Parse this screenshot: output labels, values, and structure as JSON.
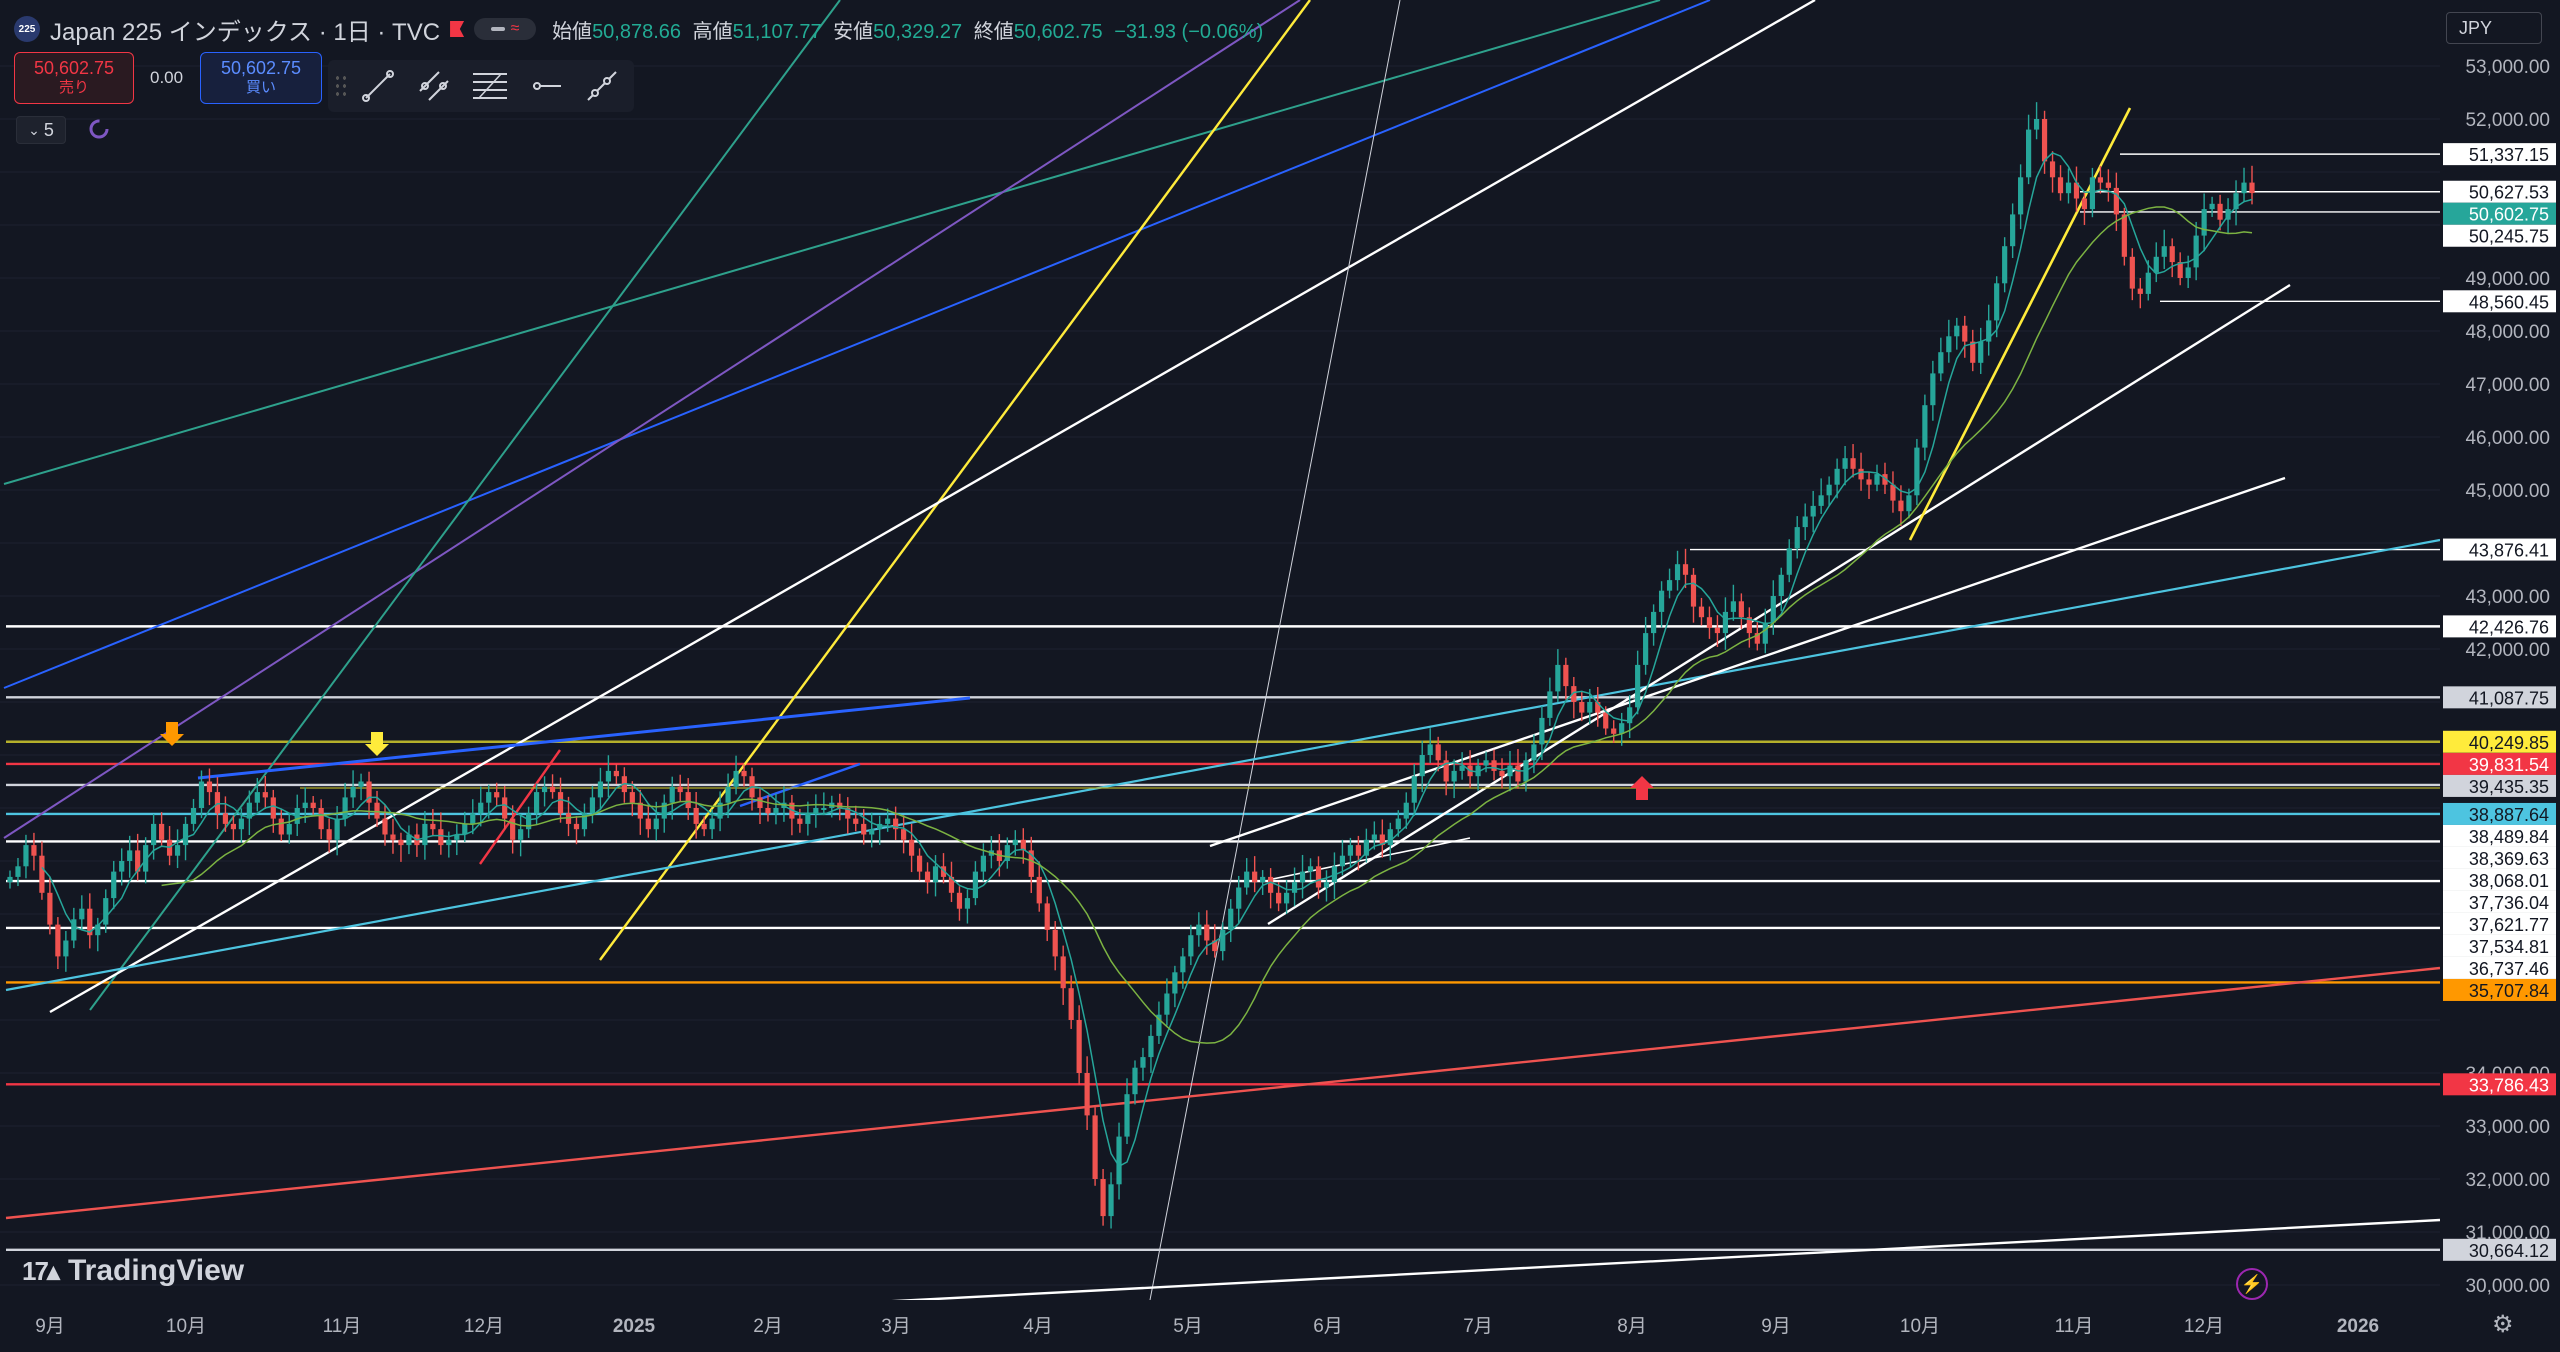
{
  "header": {
    "symbol": "Japan 225 インデックス · 1日 · TVC",
    "open_label": "始値",
    "open": "50,878.66",
    "high_label": "高値",
    "high": "51,107.77",
    "low_label": "安値",
    "low": "50,329.27",
    "close_label": "終値",
    "close": "50,602.75",
    "change": "−31.93 (−0.06%)",
    "logo_text": "225"
  },
  "trade": {
    "sell_price": "50,602.75",
    "sell_label": "売り",
    "spread": "0.00",
    "buy_price": "50,602.75",
    "buy_label": "買い"
  },
  "indicators": {
    "count": "5"
  },
  "currency": "JPY",
  "brand": {
    "name": "TradingView"
  },
  "colors": {
    "bg": "#131722",
    "up": "#26a69a",
    "down": "#ef5350",
    "white": "#ffffff",
    "yellow": "#ffeb3b",
    "orange": "#ff9800",
    "red": "#f23645",
    "cyan": "#4dc4e0",
    "blue": "#2962ff",
    "purple": "#7e57c2",
    "teal": "#2ea18c",
    "green": "#3d8f6a",
    "grey": "#9598a1"
  },
  "chart_data": {
    "type": "candlestick",
    "title": "Japan 225 インデックス · 1日 · TVC",
    "y_axis": {
      "ticks": [
        "53,000.00",
        "52,000.00",
        "49,000.00",
        "48,000.00",
        "47,000.00",
        "46,000.00",
        "45,000.00",
        "43,000.00",
        "42,000.00",
        "34,000.00",
        "33,000.00",
        "32,000.00",
        "31,000.00",
        "30,000.00"
      ],
      "ylim": [
        29800,
        53400
      ]
    },
    "x_axis": {
      "ticks": [
        "9月",
        "10月",
        "11月",
        "12月",
        "2025",
        "2月",
        "3月",
        "4月",
        "5月",
        "6月",
        "7月",
        "8月",
        "9月",
        "10月",
        "11月",
        "12月",
        "2026"
      ]
    },
    "price_labels": [
      {
        "text": "51,337.15",
        "value": 51337.15,
        "bg": "#ffffff",
        "fg": "#131722"
      },
      {
        "text": "50,627.53",
        "value": 50627.53,
        "bg": "#ffffff",
        "fg": "#131722"
      },
      {
        "text": "50,602.75",
        "value": 50602.75,
        "bg": "#26a69a",
        "fg": "#ffffff"
      },
      {
        "text": "50,245.75",
        "value": 50245.75,
        "bg": "#ffffff",
        "fg": "#131722"
      },
      {
        "text": "48,560.45",
        "value": 48560.45,
        "bg": "#ffffff",
        "fg": "#131722"
      },
      {
        "text": "43,876.41",
        "value": 43876.41,
        "bg": "#ffffff",
        "fg": "#131722"
      },
      {
        "text": "42,426.76",
        "value": 42426.76,
        "bg": "#ffffff",
        "fg": "#131722"
      },
      {
        "text": "41,087.75",
        "value": 41087.75,
        "bg": "#d1d4dc",
        "fg": "#131722"
      },
      {
        "text": "40,249.85",
        "value": 40249.85,
        "bg": "#ffeb3b",
        "fg": "#131722"
      },
      {
        "text": "39,831.54",
        "value": 39831.54,
        "bg": "#f23645",
        "fg": "#ffffff"
      },
      {
        "text": "39,435.35",
        "value": 39435.35,
        "bg": "#d1d4dc",
        "fg": "#131722"
      },
      {
        "text": "38,887.64",
        "value": 38887.64,
        "bg": "#4dc4e0",
        "fg": "#131722"
      },
      {
        "text": "38,489.84",
        "value": 38489.84,
        "bg": "#ffffff",
        "fg": "#131722"
      },
      {
        "text": "38,369.63",
        "value": 38369.63,
        "bg": "#ffffff",
        "fg": "#131722"
      },
      {
        "text": "38,068.01",
        "value": 38068.01,
        "bg": "#ffffff",
        "fg": "#131722"
      },
      {
        "text": "37,736.04",
        "value": 37736.04,
        "bg": "#ffffff",
        "fg": "#131722"
      },
      {
        "text": "37,621.77",
        "value": 37621.77,
        "bg": "#ffffff",
        "fg": "#131722"
      },
      {
        "text": "37,534.81",
        "value": 37534.81,
        "bg": "#ffffff",
        "fg": "#131722"
      },
      {
        "text": "36,737.46",
        "value": 36737.46,
        "bg": "#ffffff",
        "fg": "#131722"
      },
      {
        "text": "35,707.84",
        "value": 35707.84,
        "bg": "#ff9800",
        "fg": "#131722"
      },
      {
        "text": "33,786.43",
        "value": 33786.43,
        "bg": "#f23645",
        "fg": "#ffffff"
      },
      {
        "text": "30,664.12",
        "value": 30664.12,
        "bg": "#d1d4dc",
        "fg": "#131722"
      }
    ],
    "horizontal_levels": [
      {
        "value": 42426.76,
        "color": "#ffffff"
      },
      {
        "value": 41087.75,
        "color": "#d1d4dc"
      },
      {
        "value": 40249.85,
        "color": "#b5b02b"
      },
      {
        "value": 39831.54,
        "color": "#f23645"
      },
      {
        "value": 39435.35,
        "color": "#d1d4dc"
      },
      {
        "value": 38887.64,
        "color": "#4dc4e0"
      },
      {
        "value": 38369.63,
        "color": "#ffffff"
      },
      {
        "value": 37621.77,
        "color": "#ffffff"
      },
      {
        "value": 36737.46,
        "color": "#ffffff"
      },
      {
        "value": 35707.84,
        "color": "#ff9800"
      },
      {
        "value": 33786.43,
        "color": "#f23645"
      },
      {
        "value": 30664.12,
        "color": "#d1d4dc"
      }
    ],
    "closes": [
      37700,
      37900,
      38300,
      38100,
      37400,
      36800,
      36200,
      36500,
      36900,
      37100,
      36600,
      36800,
      37300,
      37800,
      38000,
      38200,
      37800,
      38300,
      38700,
      38400,
      38100,
      38300,
      38700,
      39000,
      39500,
      39300,
      38900,
      38700,
      38600,
      38800,
      39100,
      39300,
      39200,
      38800,
      38500,
      38700,
      39000,
      39100,
      39000,
      38600,
      38400,
      38800,
      39200,
      39400,
      39500,
      39100,
      38800,
      38500,
      38400,
      38300,
      38500,
      38300,
      38700,
      38600,
      38300,
      38400,
      38500,
      38700,
      38900,
      39100,
      39300,
      39200,
      38800,
      38400,
      38600,
      38900,
      39300,
      39400,
      39300,
      38900,
      38700,
      38600,
      38900,
      39200,
      39500,
      39700,
      39600,
      39300,
      39100,
      38800,
      38600,
      38800,
      39100,
      39400,
      39300,
      39000,
      38700,
      38600,
      38800,
      39100,
      39400,
      39700,
      39600,
      39200,
      39000,
      38900,
      39000,
      39100,
      38800,
      38700,
      38900,
      39000,
      39000,
      39100,
      39000,
      38800,
      38700,
      38500,
      38600,
      38700,
      38800,
      38600,
      38400,
      38100,
      37800,
      37600,
      37900,
      37700,
      37400,
      37100,
      37300,
      37800,
      38100,
      38200,
      38000,
      38300,
      38400,
      38200,
      37700,
      37200,
      36700,
      36200,
      35600,
      35000,
      34000,
      33200,
      32000,
      31300,
      31900,
      32800,
      33600,
      34100,
      34300,
      34700,
      35100,
      35500,
      35900,
      36200,
      36600,
      36800,
      36500,
      36300,
      36700,
      37100,
      37500,
      37800,
      37600,
      37700,
      37400,
      37200,
      37400,
      37600,
      37800,
      37900,
      37500,
      37600,
      37900,
      38100,
      38300,
      38100,
      38400,
      38500,
      38300,
      38600,
      38800,
      39100,
      39600,
      40000,
      40200,
      39900,
      39500,
      39700,
      39800,
      39600,
      39800,
      39900,
      39700,
      39600,
      39800,
      39500,
      39900,
      40200,
      40700,
      41200,
      41700,
      41300,
      41000,
      40800,
      41000,
      40800,
      40500,
      40400,
      40600,
      40900,
      41700,
      42300,
      42700,
      43100,
      43300,
      43600,
      43400,
      42800,
      42600,
      42400,
      42300,
      42700,
      42900,
      42600,
      42300,
      42100,
      42500,
      43000,
      43400,
      43900,
      44300,
      44500,
      44700,
      44900,
      45100,
      45400,
      45600,
      45400,
      45200,
      45100,
      45300,
      45100,
      44800,
      44600,
      44900,
      45800,
      46600,
      47200,
      47600,
      47900,
      48100,
      47800,
      47400,
      47800,
      48200,
      48900,
      49600,
      50200,
      50900,
      51800,
      52000,
      51200,
      50900,
      50600,
      50800,
      50500,
      50300,
      50900,
      50800,
      50700,
      50200,
      49400,
      48800,
      48700,
      49100,
      49400,
      49600,
      49300,
      49000,
      49200,
      49800,
      50300,
      50400,
      50100,
      50300,
      50600,
      50800,
      50602.75
    ]
  }
}
